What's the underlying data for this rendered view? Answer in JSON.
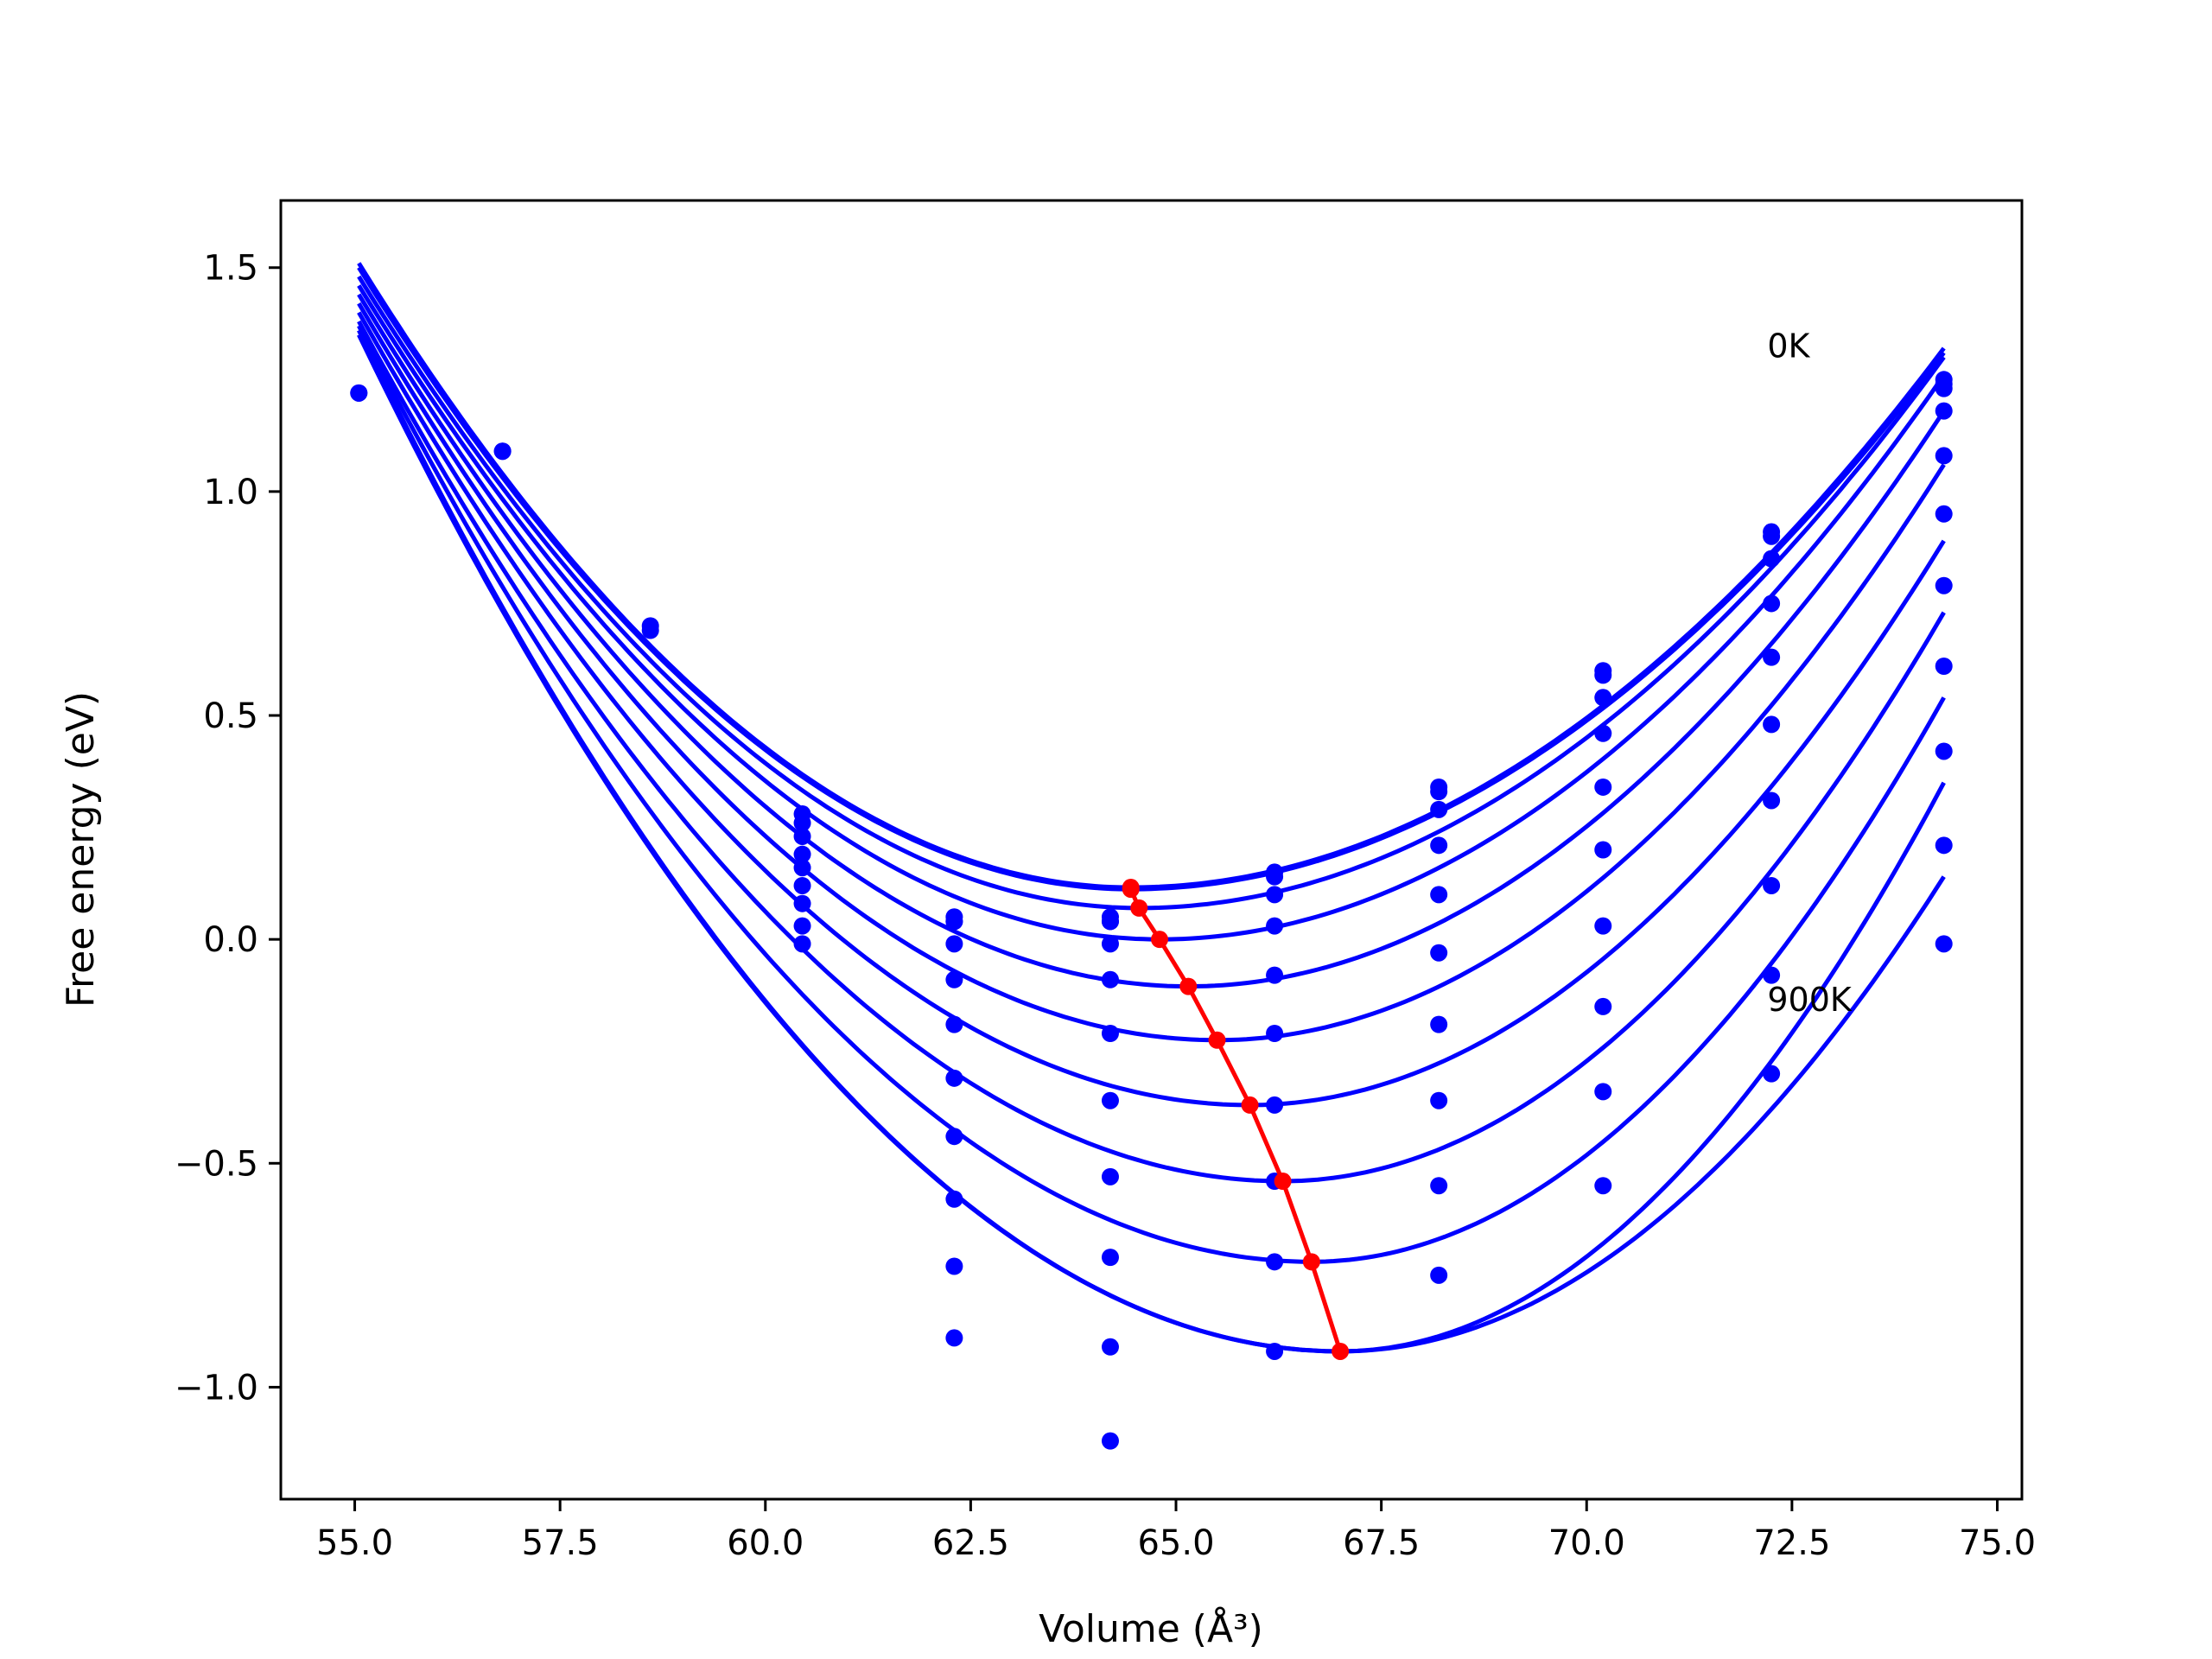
{
  "chart_data": {
    "type": "scatter",
    "xlabel": "Volume (Å³)",
    "ylabel": "Free energy (eV)",
    "xlim": [
      54.1,
      75.3
    ],
    "ylim": [
      -1.25,
      1.65
    ],
    "xticks": [
      55.0,
      57.5,
      60.0,
      62.5,
      65.0,
      67.5,
      70.0,
      72.5,
      75.0
    ],
    "xtick_labels": [
      "55.0",
      "57.5",
      "60.0",
      "62.5",
      "65.0",
      "67.5",
      "70.0",
      "72.5",
      "75.0"
    ],
    "yticks": [
      1.5,
      1.0,
      0.5,
      0.0,
      -0.5,
      -1.0
    ],
    "ytick_labels": [
      "1.5",
      "1.0",
      "0.5",
      "0.0",
      "−0.5",
      "−1.0"
    ],
    "grid": false,
    "colors": {
      "points": "#0000ff",
      "fits": "#0000ff",
      "minima": "#ff0000"
    },
    "annotations": [
      {
        "text": "0K",
        "x": 72.2,
        "y": 1.3
      },
      {
        "text": "900K",
        "x": 72.2,
        "y": -0.16
      }
    ],
    "volumes": [
      55.05,
      56.8,
      58.6,
      60.45,
      62.3,
      64.2,
      66.2,
      68.2,
      70.2,
      72.25,
      74.35
    ],
    "series": [
      {
        "fit": [
          1.51,
          0.116,
          0.0,
          32.0,
          1.32,
          64.45
        ],
        "points": [
          1.22,
          1.09,
          0.7,
          0.28,
          0.05,
          0.05,
          0.15,
          0.34,
          0.6,
          0.91,
          1.25
        ]
      },
      {
        "fit": [
          1.5,
          0.112,
          0.0,
          32.0,
          1.31,
          64.45
        ],
        "points": [
          1.22,
          1.09,
          0.69,
          0.26,
          0.04,
          0.04,
          0.14,
          0.33,
          0.59,
          0.9,
          1.24
        ]
      },
      {
        "fit": [
          1.48,
          0.07,
          0.0,
          32.0,
          1.3,
          64.55
        ],
        "points": [
          null,
          null,
          null,
          0.23,
          0.04,
          0.04,
          0.1,
          0.29,
          0.54,
          0.85,
          1.23
        ]
      },
      {
        "fit": [
          1.46,
          0.0,
          0.0,
          32.0,
          1.26,
          64.8
        ],
        "points": [
          null,
          null,
          null,
          0.19,
          -0.01,
          -0.01,
          0.03,
          0.21,
          0.46,
          0.75,
          1.18
        ]
      },
      {
        "fit": [
          1.44,
          -0.105,
          0.0,
          32.0,
          1.18,
          65.15
        ],
        "points": [
          null,
          null,
          null,
          0.16,
          -0.09,
          -0.09,
          -0.08,
          0.1,
          0.34,
          0.63,
          1.08
        ]
      },
      {
        "fit": [
          1.42,
          -0.225,
          0.0,
          32.0,
          1.06,
          65.5
        ],
        "points": [
          null,
          null,
          null,
          0.12,
          -0.19,
          -0.21,
          -0.21,
          -0.03,
          0.2,
          0.48,
          0.95
        ]
      },
      {
        "fit": [
          1.4,
          -0.37,
          0.0,
          32.0,
          0.89,
          65.9
        ],
        "points": [
          null,
          null,
          null,
          0.08,
          -0.31,
          -0.36,
          -0.37,
          -0.19,
          0.03,
          0.31,
          0.79
        ]
      },
      {
        "fit": [
          1.38,
          -0.54,
          0.0,
          32.0,
          0.73,
          66.3
        ],
        "points": [
          null,
          null,
          null,
          0.03,
          -0.44,
          -0.53,
          -0.54,
          -0.36,
          -0.15,
          0.12,
          0.61
        ]
      },
      {
        "fit": [
          1.37,
          -0.72,
          0.0,
          32.0,
          0.54,
          66.65
        ],
        "points": [
          null,
          null,
          null,
          -0.01,
          -0.58,
          -0.71,
          -0.72,
          -0.55,
          -0.34,
          -0.08,
          0.42
        ]
      },
      {
        "fit": [
          1.36,
          -0.92,
          0.0,
          32.0,
          0.35,
          67.0
        ],
        "points": [
          null,
          null,
          null,
          null,
          -0.73,
          -0.91,
          -0.92,
          -0.75,
          -0.55,
          -0.3,
          0.21
        ]
      },
      {
        "fit": [
          1.35,
          -0.92,
          0.0,
          32.0,
          0.14,
          67.0
        ],
        "points": [
          null,
          null,
          null,
          null,
          -0.89,
          -1.12,
          null,
          null,
          null,
          null,
          -0.01
        ]
      }
    ],
    "minima": [
      {
        "x": 64.45,
        "y": 0.116
      },
      {
        "x": 64.45,
        "y": 0.112
      },
      {
        "x": 64.55,
        "y": 0.07
      },
      {
        "x": 64.8,
        "y": 0.0
      },
      {
        "x": 65.15,
        "y": -0.105
      },
      {
        "x": 65.5,
        "y": -0.225
      },
      {
        "x": 65.9,
        "y": -0.37
      },
      {
        "x": 66.3,
        "y": -0.54
      },
      {
        "x": 66.65,
        "y": -0.72
      },
      {
        "x": 67.0,
        "y": -0.92
      }
    ]
  }
}
